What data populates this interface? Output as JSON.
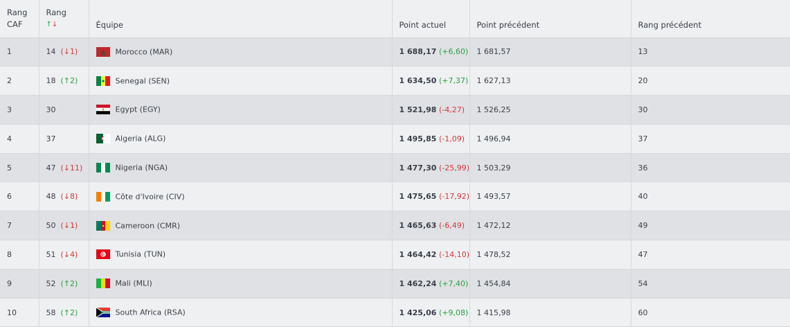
{
  "headers": {
    "rang_caf_line1": "Rang",
    "rang_caf_line2": "CAF",
    "rang_line1": "Rang",
    "rang_sort_up": "↑",
    "rang_sort_down": "↓",
    "equipe": "Équipe",
    "point_actuel": "Point actuel",
    "point_precedent": "Point précédent",
    "rang_precedent": "Rang précédent"
  },
  "rows": [
    {
      "caf": "1",
      "rang": "14",
      "move": "(↓1)",
      "dir": "down",
      "team": "Morocco (MAR)",
      "flag": "morocco-flag-icon",
      "pts": "1 688,17",
      "chg": "(+6,60)",
      "chgdir": "up",
      "prev": "1 681,57",
      "prevrank": "13"
    },
    {
      "caf": "2",
      "rang": "18",
      "move": "(↑2)",
      "dir": "up",
      "team": "Senegal (SEN)",
      "flag": "senegal-flag-icon",
      "pts": "1 634,50",
      "chg": "(+7,37)",
      "chgdir": "up",
      "prev": "1 627,13",
      "prevrank": "20"
    },
    {
      "caf": "3",
      "rang": "30",
      "move": "",
      "dir": "",
      "team": "Egypt (EGY)",
      "flag": "egypt-flag-icon",
      "pts": "1 521,98",
      "chg": "(-4,27)",
      "chgdir": "down",
      "prev": "1 526,25",
      "prevrank": "30"
    },
    {
      "caf": "4",
      "rang": "37",
      "move": "",
      "dir": "",
      "team": "Algeria (ALG)",
      "flag": "algeria-flag-icon",
      "pts": "1 495,85",
      "chg": "(-1,09)",
      "chgdir": "down",
      "prev": "1 496,94",
      "prevrank": "37"
    },
    {
      "caf": "5",
      "rang": "47",
      "move": "(↓11)",
      "dir": "down",
      "team": "Nigeria (NGA)",
      "flag": "nigeria-flag-icon",
      "pts": "1 477,30",
      "chg": "(-25,99)",
      "chgdir": "down",
      "prev": "1 503,29",
      "prevrank": "36"
    },
    {
      "caf": "6",
      "rang": "48",
      "move": "(↓8)",
      "dir": "down",
      "team": "Côte d'Ivoire (CIV)",
      "flag": "cote-divoire-flag-icon",
      "pts": "1 475,65",
      "chg": "(-17,92)",
      "chgdir": "down",
      "prev": "1 493,57",
      "prevrank": "40"
    },
    {
      "caf": "7",
      "rang": "50",
      "move": "(↓1)",
      "dir": "down",
      "team": "Cameroon (CMR)",
      "flag": "cameroon-flag-icon",
      "pts": "1 465,63",
      "chg": "(-6,49)",
      "chgdir": "down",
      "prev": "1 472,12",
      "prevrank": "49"
    },
    {
      "caf": "8",
      "rang": "51",
      "move": "(↓4)",
      "dir": "down",
      "team": "Tunisia (TUN)",
      "flag": "tunisia-flag-icon",
      "pts": "1 464,42",
      "chg": "(-14,10)",
      "chgdir": "down",
      "prev": "1 478,52",
      "prevrank": "47"
    },
    {
      "caf": "9",
      "rang": "52",
      "move": "(↑2)",
      "dir": "up",
      "team": "Mali (MLI)",
      "flag": "mali-flag-icon",
      "pts": "1 462,24",
      "chg": "(+7,40)",
      "chgdir": "up",
      "prev": "1 454,84",
      "prevrank": "54"
    },
    {
      "caf": "10",
      "rang": "58",
      "move": "(↑2)",
      "dir": "up",
      "team": "South Africa (RSA)",
      "flag": "south-africa-flag-icon",
      "pts": "1 425,06",
      "chg": "(+9,08)",
      "chgdir": "up",
      "prev": "1 415,98",
      "prevrank": "60"
    }
  ]
}
